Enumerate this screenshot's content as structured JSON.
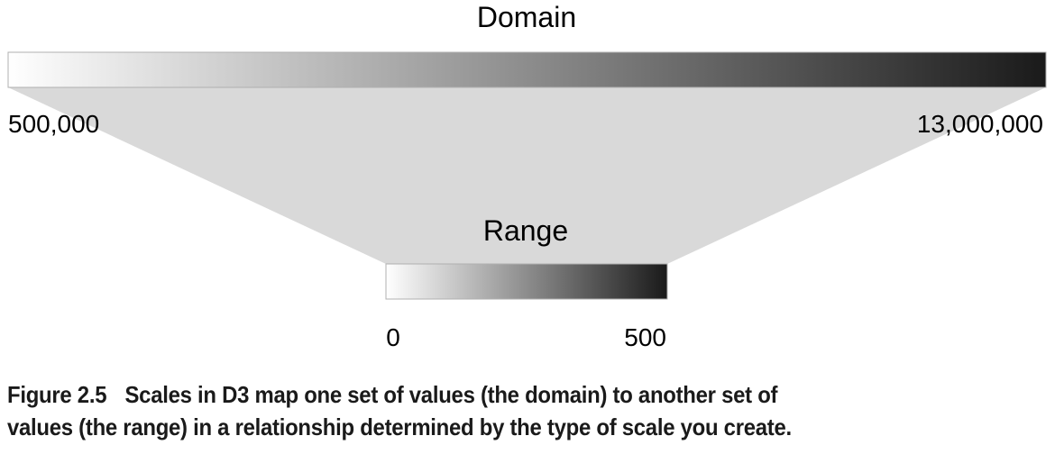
{
  "diagram": {
    "domain": {
      "label": "Domain",
      "min_label": "500,000",
      "max_label": "13,000,000"
    },
    "range": {
      "label": "Range",
      "min_label": "0",
      "max_label": "500"
    },
    "colors": {
      "funnel_fill": "#d9d9d9",
      "gradient_start": "#ffffff",
      "gradient_end": "#1a1a1a",
      "bar_stroke": "#b0b0b0"
    }
  },
  "caption": {
    "figure_number": "Figure 2.5",
    "line1": "Scales in D3 map one set of values (the domain) to another set of",
    "line2": "values (the range) in a relationship determined by the type of scale you create."
  }
}
